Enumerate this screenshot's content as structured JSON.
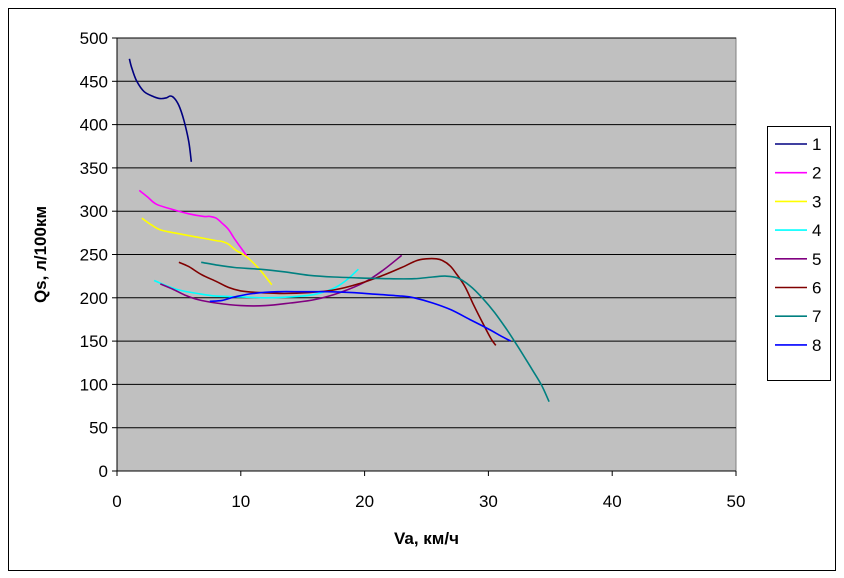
{
  "chart_data": {
    "type": "line",
    "xlabel": "Va, км/ч",
    "ylabel": "Qs, л/100км",
    "xlim": [
      0,
      50
    ],
    "ylim": [
      0,
      500
    ],
    "x_ticks": [
      "0",
      "10",
      "20",
      "30",
      "40",
      "50"
    ],
    "y_ticks": [
      "0",
      "50",
      "100",
      "150",
      "200",
      "250",
      "300",
      "350",
      "400",
      "450",
      "500"
    ],
    "grid": "horizontal",
    "plot_background": "#c0c0c0",
    "legend_position": "right",
    "series": [
      {
        "name": "1",
        "color": "#000080",
        "points": [
          [
            1.0,
            476
          ],
          [
            1.2,
            465
          ],
          [
            1.6,
            450
          ],
          [
            2.2,
            438
          ],
          [
            3.0,
            432
          ],
          [
            3.5,
            430
          ],
          [
            4.0,
            431
          ],
          [
            4.3,
            433
          ],
          [
            4.6,
            431
          ],
          [
            5.0,
            422
          ],
          [
            5.4,
            405
          ],
          [
            5.8,
            380
          ],
          [
            6.0,
            357
          ]
        ]
      },
      {
        "name": "2",
        "color": "#ff00ff",
        "points": [
          [
            1.8,
            324
          ],
          [
            2.5,
            316
          ],
          [
            3.2,
            308
          ],
          [
            4.5,
            302
          ],
          [
            5.8,
            297
          ],
          [
            7.0,
            294
          ],
          [
            7.5,
            294
          ],
          [
            8.0,
            292
          ],
          [
            8.5,
            286
          ],
          [
            9.0,
            279
          ],
          [
            9.5,
            268
          ],
          [
            10.0,
            258
          ],
          [
            10.5,
            248
          ]
        ]
      },
      {
        "name": "3",
        "color": "#ffff00",
        "points": [
          [
            2.0,
            292
          ],
          [
            2.8,
            284
          ],
          [
            3.6,
            278
          ],
          [
            5.0,
            274
          ],
          [
            6.5,
            270
          ],
          [
            8.0,
            266
          ],
          [
            8.5,
            265
          ],
          [
            9.0,
            262
          ],
          [
            9.6,
            255
          ],
          [
            10.5,
            247
          ],
          [
            11.5,
            233
          ],
          [
            12.5,
            215
          ]
        ]
      },
      {
        "name": "4",
        "color": "#00ffff",
        "points": [
          [
            3.0,
            220
          ],
          [
            4.0,
            214
          ],
          [
            5.0,
            209
          ],
          [
            6.5,
            205
          ],
          [
            8.0,
            202
          ],
          [
            10.0,
            201
          ],
          [
            12.0,
            200
          ],
          [
            14.0,
            201
          ],
          [
            16.0,
            204
          ],
          [
            17.5,
            211
          ],
          [
            18.5,
            220
          ],
          [
            19.5,
            233
          ]
        ]
      },
      {
        "name": "5",
        "color": "#800080",
        "points": [
          [
            3.5,
            216
          ],
          [
            4.5,
            210
          ],
          [
            5.5,
            203
          ],
          [
            6.5,
            198
          ],
          [
            8.0,
            194
          ],
          [
            10.0,
            191
          ],
          [
            12.0,
            191
          ],
          [
            14.0,
            194
          ],
          [
            16.0,
            198
          ],
          [
            18.0,
            206
          ],
          [
            20.0,
            218
          ],
          [
            21.5,
            232
          ],
          [
            23.0,
            249
          ]
        ]
      },
      {
        "name": "6",
        "color": "#800000",
        "points": [
          [
            5.0,
            241
          ],
          [
            5.8,
            236
          ],
          [
            6.8,
            227
          ],
          [
            8.0,
            219
          ],
          [
            9.0,
            212
          ],
          [
            10.0,
            208
          ],
          [
            11.5,
            206
          ],
          [
            13.5,
            205
          ],
          [
            15.5,
            206
          ],
          [
            17.5,
            209
          ],
          [
            19.5,
            216
          ],
          [
            21.5,
            226
          ],
          [
            23.0,
            235
          ],
          [
            24.2,
            243
          ],
          [
            25.0,
            245
          ],
          [
            25.8,
            245
          ],
          [
            26.3,
            243
          ],
          [
            26.9,
            237
          ],
          [
            27.4,
            228
          ],
          [
            28.1,
            213
          ],
          [
            28.8,
            192
          ],
          [
            29.5,
            172
          ],
          [
            30.2,
            153
          ],
          [
            30.6,
            145
          ]
        ]
      },
      {
        "name": "7",
        "color": "#008080",
        "points": [
          [
            6.8,
            241
          ],
          [
            8.0,
            238
          ],
          [
            9.5,
            235
          ],
          [
            11.5,
            233
          ],
          [
            13.5,
            230
          ],
          [
            15.5,
            226
          ],
          [
            17.5,
            224
          ],
          [
            19.5,
            223
          ],
          [
            22.0,
            222
          ],
          [
            24.0,
            222
          ],
          [
            25.5,
            224
          ],
          [
            26.5,
            225
          ],
          [
            27.5,
            223
          ],
          [
            28.5,
            214
          ],
          [
            29.5,
            200
          ],
          [
            30.5,
            183
          ],
          [
            31.5,
            163
          ],
          [
            32.5,
            141
          ],
          [
            33.5,
            118
          ],
          [
            34.3,
            99
          ],
          [
            34.9,
            80
          ]
        ]
      },
      {
        "name": "8",
        "color": "#0000ff",
        "points": [
          [
            7.5,
            196
          ],
          [
            8.5,
            197
          ],
          [
            9.5,
            201
          ],
          [
            11.0,
            205
          ],
          [
            13.0,
            207
          ],
          [
            15.0,
            207
          ],
          [
            17.0,
            207
          ],
          [
            19.0,
            206
          ],
          [
            21.0,
            204
          ],
          [
            23.0,
            202
          ],
          [
            24.0,
            200
          ],
          [
            25.5,
            194
          ],
          [
            27.0,
            186
          ],
          [
            28.5,
            175
          ],
          [
            30.0,
            164
          ],
          [
            31.0,
            156
          ],
          [
            31.8,
            150
          ]
        ]
      }
    ]
  }
}
